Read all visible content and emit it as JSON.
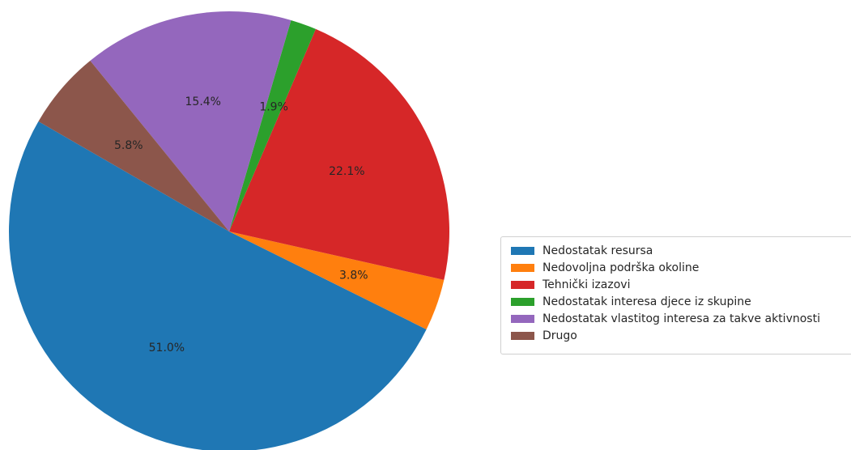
{
  "chart_data": {
    "type": "pie",
    "title": "",
    "legend_position": "right",
    "start_angle_deg": 150,
    "slices": [
      {
        "label": "Nedostatak resursa",
        "value": 51.0,
        "pct_label": "51.0%",
        "color": "#1f77b4"
      },
      {
        "label": "Nedovoljna podrška okoline",
        "value": 3.8,
        "pct_label": "3.8%",
        "color": "#ff7f0e"
      },
      {
        "label": "Tehnički izazovi",
        "value": 22.1,
        "pct_label": "22.1%",
        "color": "#d62728"
      },
      {
        "label": "Nedostatak interesa djece iz skupine",
        "value": 1.9,
        "pct_label": "1.9%",
        "color": "#2ca02c"
      },
      {
        "label": "Nedostatak vlastitog interesa za takve aktivnosti",
        "value": 15.4,
        "pct_label": "15.4%",
        "color": "#9467bd"
      },
      {
        "label": "Drugo",
        "value": 5.8,
        "pct_label": "5.8%",
        "color": "#8c564b"
      }
    ]
  }
}
